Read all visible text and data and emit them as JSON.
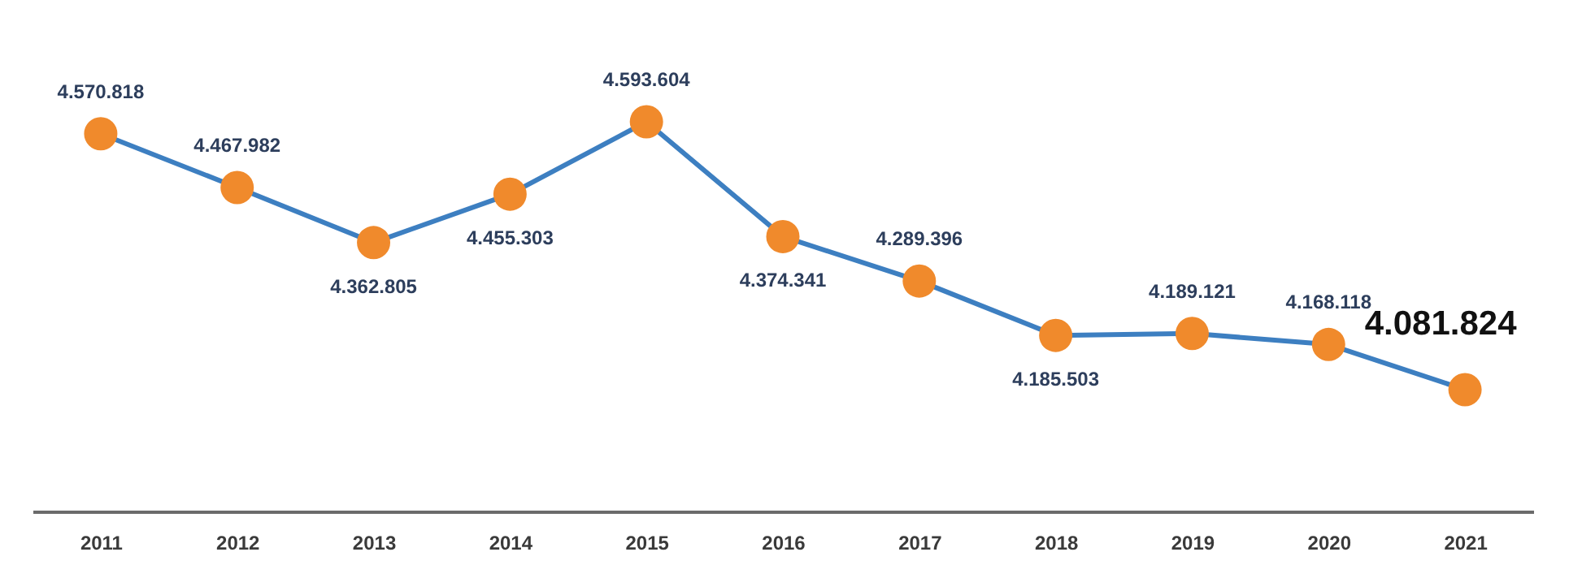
{
  "chart_data": {
    "type": "line",
    "categories": [
      "2011",
      "2012",
      "2013",
      "2014",
      "2015",
      "2016",
      "2017",
      "2018",
      "2019",
      "2020",
      "2021"
    ],
    "series": [
      {
        "color": "#3d7fc1",
        "colors": [
          "#f08a2c",
          "#f08a2c",
          "#f08a2c",
          "#f08a2c",
          "#f08a2c",
          "#f08a2c",
          "#f08a2c",
          "#f08a2c",
          "#f08a2c",
          "#f08a2c",
          "#f08a2c"
        ],
        "values": [
          4570818,
          4467982,
          4362805,
          4455303,
          4593604,
          4374341,
          4289396,
          4185503,
          4189121,
          4168118,
          4081824
        ],
        "value_labels": [
          "4.570.818",
          "4.467.982",
          "4.362.805",
          "4.455.303",
          "4.593.604",
          "4.374.341",
          "4.289.396",
          "4.185.503",
          "4.189.121",
          "4.168.118",
          "4.081.824"
        ]
      }
    ],
    "marker": "circle",
    "line_style": "solid",
    "tick_labels": "x"
  }
}
